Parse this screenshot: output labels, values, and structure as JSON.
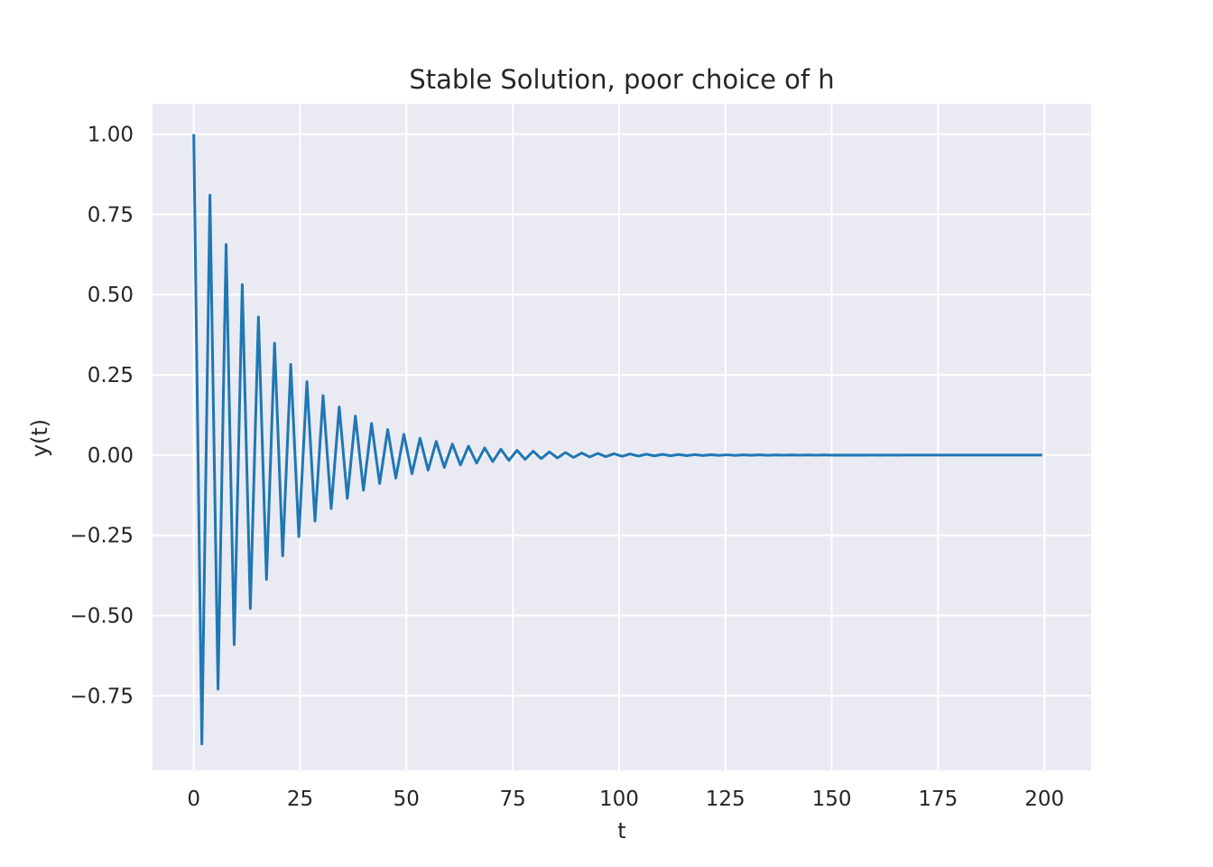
{
  "chart_data": {
    "type": "line",
    "title": "Stable Solution, poor choice of h",
    "xlabel": "t",
    "ylabel": "y(t)",
    "xlim": [
      -9.7,
      211.0
    ],
    "ylim": [
      -0.9825,
      1.0945
    ],
    "grid": true,
    "background_color": "#eaeaf2",
    "line_color": "#1f77b4",
    "x_ticks": [
      0,
      25,
      50,
      75,
      100,
      125,
      150,
      175,
      200
    ],
    "x_tick_labels": [
      "0",
      "25",
      "50",
      "75",
      "100",
      "125",
      "150",
      "175",
      "200"
    ],
    "y_ticks": [
      1.0,
      0.75,
      0.5,
      0.25,
      0.0,
      -0.25,
      -0.5,
      -0.75
    ],
    "y_tick_labels": [
      "1.00",
      "0.75",
      "0.50",
      "0.25",
      "0.00",
      "−0.25",
      "−0.50",
      "−0.75"
    ],
    "series": [
      {
        "t_start": 0,
        "t_step": 1.9,
        "t_end": 201,
        "y0": 1.0,
        "growth_factor": -0.9
      }
    ]
  }
}
